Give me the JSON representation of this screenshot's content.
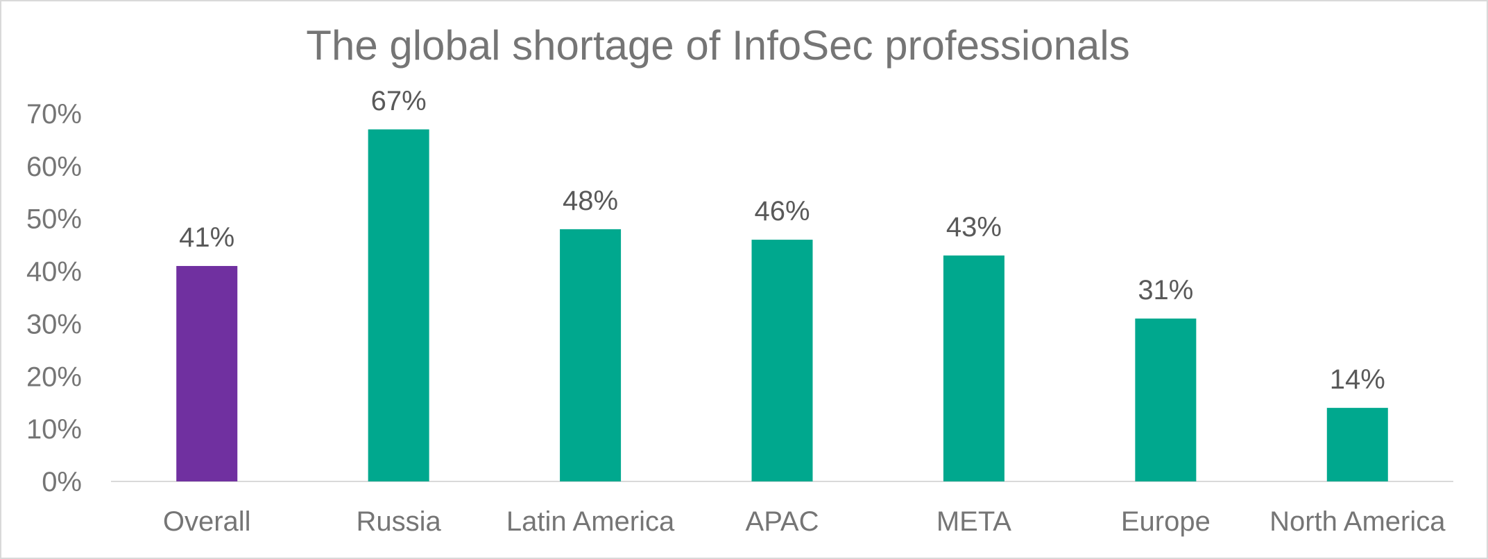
{
  "chart_data": {
    "type": "bar",
    "title": "The global shortage of InfoSec professionals",
    "xlabel": "",
    "ylabel": "",
    "categories": [
      "Overall",
      "Russia",
      "Latin America",
      "APAC",
      "META",
      "Europe",
      "North America"
    ],
    "values": [
      41,
      67,
      48,
      46,
      43,
      31,
      14
    ],
    "data_labels": [
      "41%",
      "67%",
      "48%",
      "46%",
      "43%",
      "31%",
      "14%"
    ],
    "bar_colors": [
      "#7030a0",
      "#00a88e",
      "#00a88e",
      "#00a88e",
      "#00a88e",
      "#00a88e",
      "#00a88e"
    ],
    "ylim": [
      0,
      70
    ],
    "yticks": [
      0,
      10,
      20,
      30,
      40,
      50,
      60,
      70
    ],
    "ytick_labels": [
      "0%",
      "10%",
      "20%",
      "30%",
      "40%",
      "50%",
      "60%",
      "70%"
    ],
    "grid": false,
    "legend": "none"
  },
  "colors": {
    "overall": "#7030a0",
    "region": "#00a88e",
    "text": "#757575",
    "axis": "#d9d9d9"
  }
}
